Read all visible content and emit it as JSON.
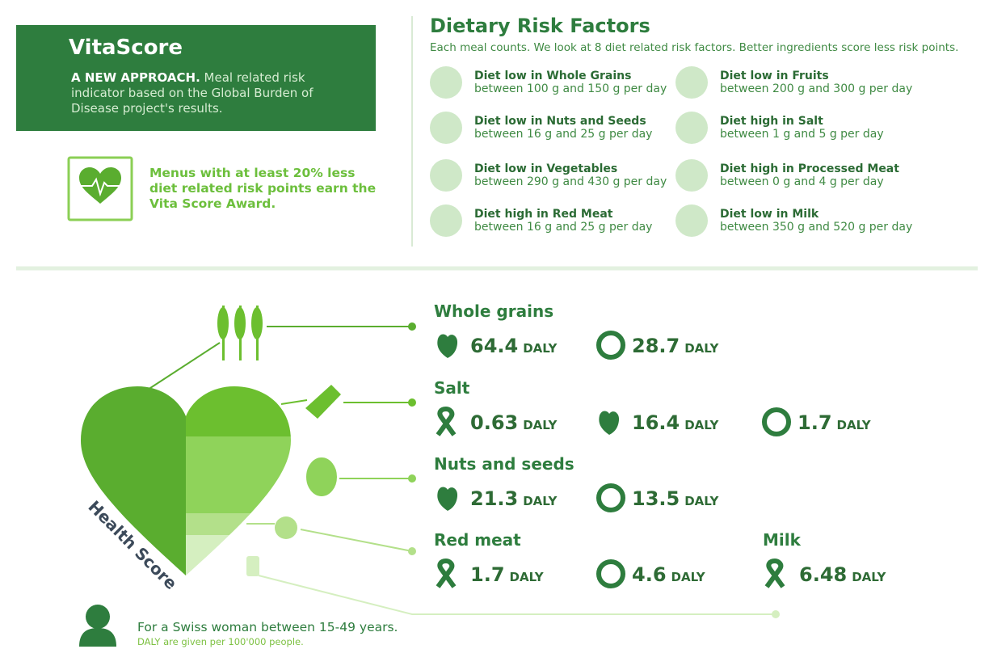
{
  "header": {
    "title": "VitaScore",
    "lead": "A NEW APPROACH.",
    "text": "Meal related risk indicator based on the Global Burden of Disease project's results."
  },
  "award": "Menus with at least 20% less diet related risk points earn the Vita Score Award.",
  "risk_factors": {
    "title": "Dietary Risk Factors",
    "subtitle": "Each meal counts. We look at 8 diet related risk factors. Better ingredients score less risk points.",
    "items": [
      {
        "name": "Diet low in Whole Grains",
        "range": "between 100 g and 150 g per day"
      },
      {
        "name": "Diet low in Fruits",
        "range": "between 200 g and 300 g per day"
      },
      {
        "name": "Diet low in Nuts and Seeds",
        "range": "between 16 g and 25 g per day"
      },
      {
        "name": "Diet high in Salt",
        "range": "between 1 g and 5 g per day"
      },
      {
        "name": "Diet low in Vegetables",
        "range": "between 290 g and 430 g per day"
      },
      {
        "name": "Diet high in Processed Meat",
        "range": "between 0 g and 4 g per day"
      },
      {
        "name": "Diet high in Red Meat",
        "range": "between 16 g and 25 g per day"
      },
      {
        "name": "Diet low in Milk",
        "range": "between 350 g and 520 g per day"
      }
    ]
  },
  "heart_label": "Health Score",
  "unit": "DALY",
  "results": [
    {
      "name": "Whole grains",
      "values": [
        64.4,
        28.7
      ]
    },
    {
      "name": "Salt",
      "values": [
        0.63,
        16.4,
        1.7
      ]
    },
    {
      "name": "Nuts and seeds",
      "values": [
        21.3,
        13.5
      ]
    },
    {
      "name": "Red meat",
      "values": [
        1.7,
        4.6
      ]
    },
    {
      "name": "Milk",
      "values": [
        6.48
      ]
    }
  ],
  "footer": {
    "text": "For a Swiss woman between 15-49 years.",
    "note": "DALY are given per 100'000 people."
  }
}
